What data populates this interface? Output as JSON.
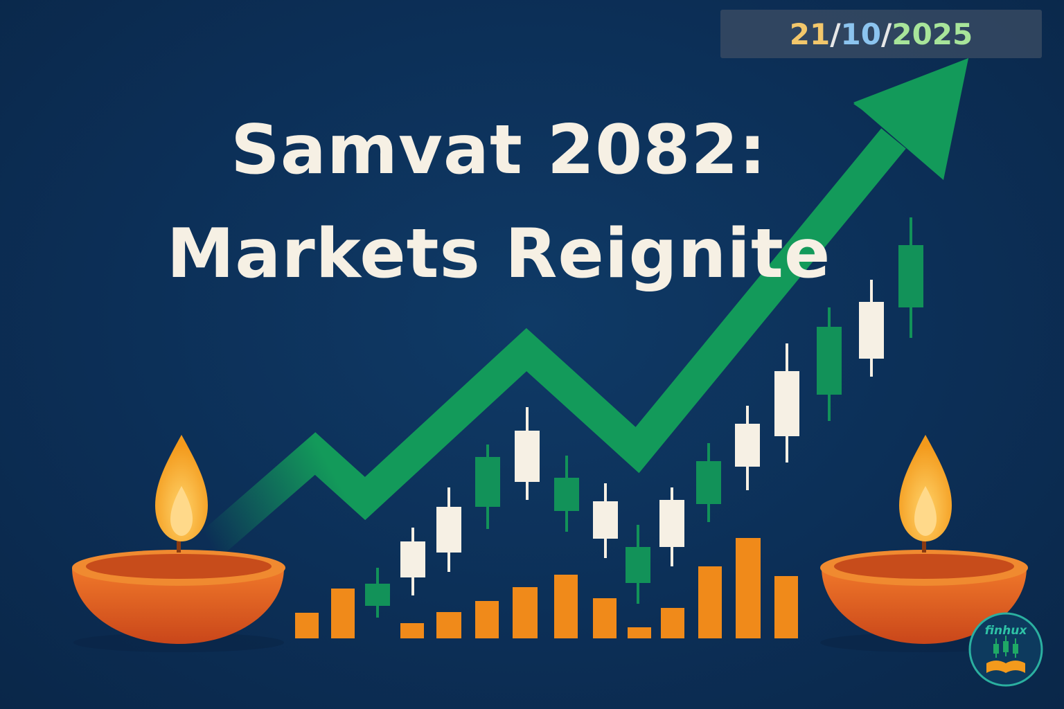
{
  "date": {
    "day": "21",
    "sep1": "/",
    "month": "10",
    "sep2": "/",
    "year": "2025",
    "colors": {
      "day": "#f3c76b",
      "sep": "#e7e7e7",
      "month": "#8cc4ef",
      "year": "#a8e59a"
    }
  },
  "headline": {
    "line1": "Samvat 2082:",
    "line2": "Markets Reignite"
  },
  "logo": {
    "text": "finhux",
    "icon": "candlestick-book-icon"
  },
  "illustration": {
    "trend_arrow": "upward-arrow-icon",
    "lamps": [
      "diya-lamp-icon",
      "diya-lamp-icon"
    ],
    "candle_colors": {
      "bull": "#129259",
      "bear": "#f6f0e4"
    },
    "bar_color": "#f08a1a"
  },
  "colors": {
    "background": "#0c2f57",
    "text": "#f6f0e4",
    "arrow": "#139a5a",
    "lamp_body": "#e8641e",
    "flame": "#f6a21e"
  }
}
